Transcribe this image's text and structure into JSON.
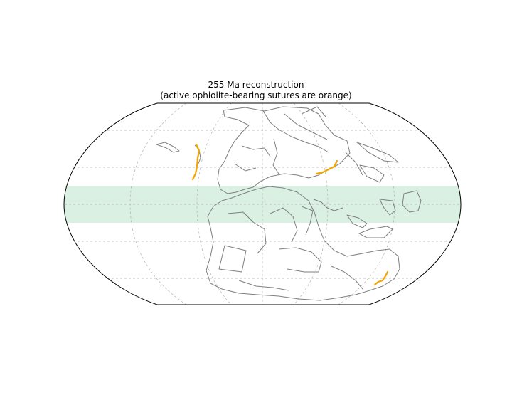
{
  "map": {
    "title": "255 Ma reconstruction",
    "subtitle": "(active ophiolite-bearing sutures are orange)",
    "colors": {
      "equatorial_band": "#d9f0e3",
      "coastlines": "#7f7f7f",
      "sutures": "#f5a500",
      "graticule": "#b0b0b0",
      "border": "#000000"
    }
  }
}
